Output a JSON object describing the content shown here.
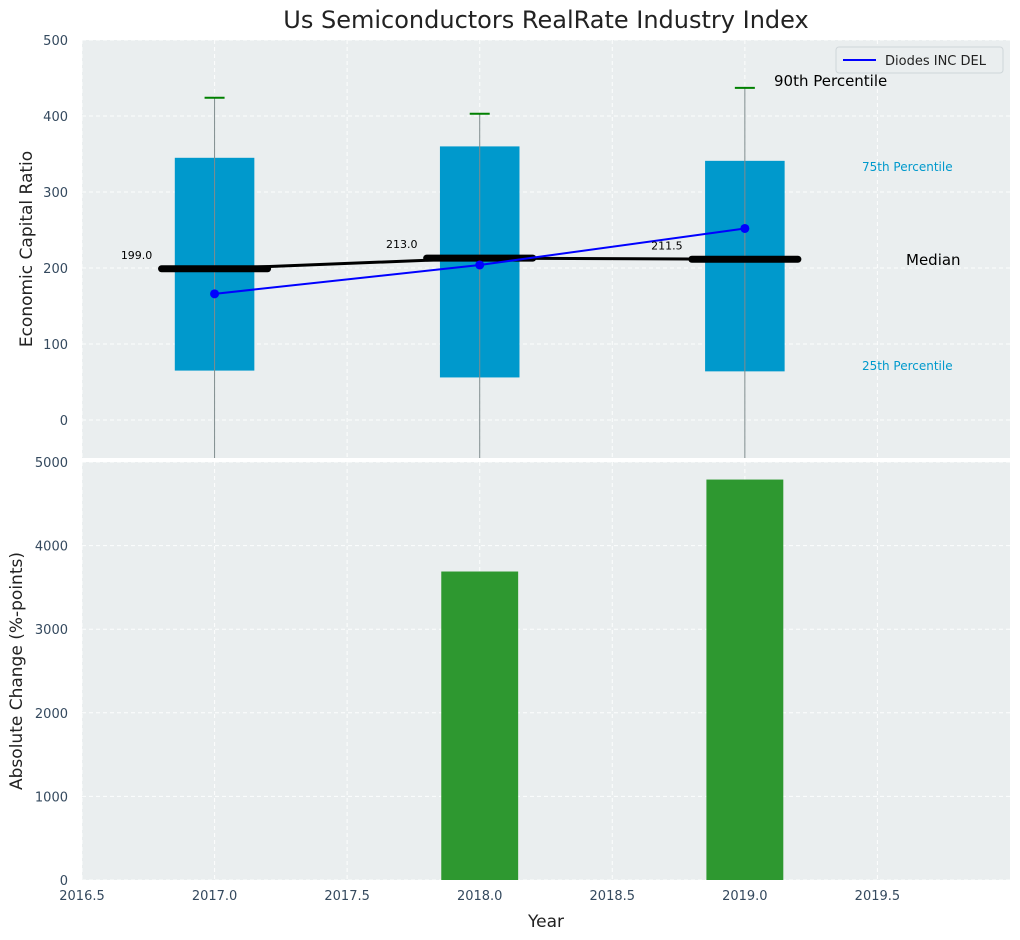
{
  "chart_data": [
    {
      "type": "box",
      "title": "Us Semiconductors RealRate Industry Index",
      "ylabel": "Economic Capital Ratio",
      "xlabel": "",
      "ylim": [
        -50,
        500
      ],
      "yticks": [
        0,
        100,
        200,
        300,
        400,
        500
      ],
      "grid": true,
      "x": [
        2017,
        2018,
        2019
      ],
      "p25": [
        65,
        56,
        64
      ],
      "p75": [
        345,
        360,
        341
      ],
      "median": [
        199.0,
        213.0,
        211.5
      ],
      "median_labels": [
        "199.0",
        "213.0",
        "211.5"
      ],
      "p90": [
        424,
        403,
        437
      ],
      "series": [
        {
          "name": "Diodes INC DEL",
          "values": [
            166,
            204,
            252
          ],
          "color": "#0000ff"
        }
      ],
      "annotations": {
        "p90": "90th Percentile",
        "p75": "75th Percentile",
        "median": "Median",
        "p25": "25th Percentile"
      },
      "legend": "top-right",
      "colors": {
        "box": "#0099cc",
        "median": "#000000",
        "whisker_cap": "#008000",
        "background": "#eaeeef"
      }
    },
    {
      "type": "bar",
      "ylabel": "Absolute Change (%-points)",
      "xlabel": "Year",
      "x": [
        2017,
        2018,
        2019
      ],
      "values": [
        0,
        3690,
        4790
      ],
      "ylim": [
        0,
        5000
      ],
      "yticks": [
        0,
        1000,
        2000,
        3000,
        4000,
        5000
      ],
      "xlim": [
        2016.5,
        2020.0
      ],
      "xticks": [
        "2016.5",
        "2017.0",
        "2017.5",
        "2018.0",
        "2018.5",
        "2019.0",
        "2019.5"
      ],
      "grid": true,
      "colors": {
        "bar": "#2e9830"
      }
    }
  ]
}
